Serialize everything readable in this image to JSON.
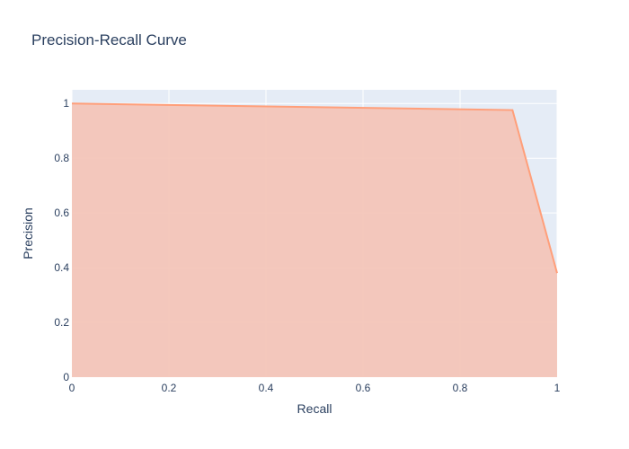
{
  "chart_data": {
    "type": "area",
    "title": "Precision-Recall Curve",
    "xlabel": "Recall",
    "ylabel": "Precision",
    "xlim": [
      0,
      1
    ],
    "ylim": [
      0,
      1.05
    ],
    "x_ticks": [
      0,
      0.2,
      0.4,
      0.6,
      0.8,
      1
    ],
    "x_tick_labels": [
      "0",
      "0.2",
      "0.4",
      "0.6",
      "0.8",
      "1"
    ],
    "y_ticks": [
      0,
      0.2,
      0.4,
      0.6,
      0.8,
      1
    ],
    "y_tick_labels": [
      "0",
      "0.2",
      "0.4",
      "0.6",
      "0.8",
      "1"
    ],
    "grid": true,
    "legend": "none",
    "series": [
      {
        "x": [
          0,
          0.908,
          1
        ],
        "y": [
          1.0,
          0.976,
          0.38
        ],
        "line_color": "#ff9f7a",
        "fill_color": "#f4c3b6",
        "fill": "tozeroy"
      }
    ],
    "plot_background": "#e5ecf6",
    "grid_color": "#ffffff",
    "text_color": "#2a3f5f"
  }
}
